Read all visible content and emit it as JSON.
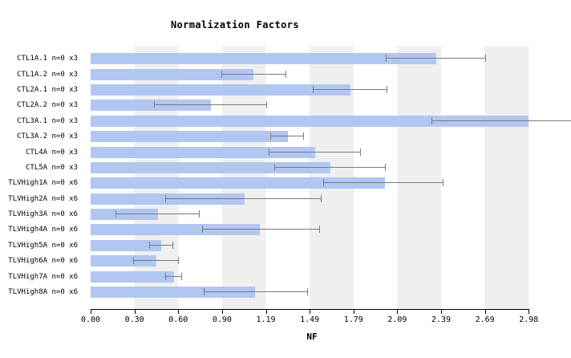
{
  "title": "Normalization Factors",
  "xlabel": "NF",
  "chart_data": {
    "type": "bar",
    "orientation": "horizontal",
    "title": "Normalization Factors",
    "xlabel": "NF",
    "ylabel": "",
    "xlim": [
      0,
      2.98
    ],
    "grid": "alternating-vertical-stripes",
    "categories": [
      "CTL1A.1 n=0 x3",
      "CTL1A.2 n=0 x3",
      "CTL2A.1 n=0 x3",
      "CTL2A.2 n=0 x3",
      "CTL3A.1 n=0 x3",
      "CTL3A.2 n=0 x3",
      "CTL4A n=0 x3",
      "CTL5A n=0 x3",
      "TLVHigh1A n=0 x6",
      "TLVHigh2A n=0 x6",
      "TLVHigh3A n=0 x6",
      "TLVHigh4A n=0 x6",
      "TLVHigh5A n=0 x6",
      "TLVHigh6A n=0 x6",
      "TLVHigh7A n=0 x6",
      "TLVHigh8A n=0 x6"
    ],
    "values": [
      2.35,
      1.11,
      1.77,
      0.82,
      2.98,
      1.34,
      1.53,
      1.63,
      2.0,
      1.05,
      0.46,
      1.15,
      0.48,
      0.45,
      0.57,
      1.12
    ],
    "error_low": [
      2.01,
      0.89,
      1.51,
      0.43,
      2.32,
      1.22,
      1.21,
      1.25,
      1.58,
      0.51,
      0.17,
      0.76,
      0.4,
      0.29,
      0.51,
      0.77
    ],
    "error_high": [
      2.69,
      1.33,
      2.02,
      1.2,
      3.27,
      1.45,
      1.84,
      2.01,
      2.4,
      1.57,
      0.74,
      1.56,
      0.56,
      0.6,
      0.62,
      1.48
    ],
    "error_high_clipped": [
      false,
      false,
      false,
      false,
      true,
      false,
      false,
      false,
      false,
      false,
      false,
      false,
      false,
      false,
      false,
      false
    ],
    "xtick_labels": [
      "0.00",
      "0.30",
      "0.60",
      "0.90",
      "1.19",
      "1.49",
      "1.79",
      "2.09",
      "2.39",
      "2.69",
      "2.98"
    ],
    "xtick_values": [
      0,
      0.298,
      0.596,
      0.894,
      1.192,
      1.49,
      1.788,
      2.086,
      2.384,
      2.682,
      2.98
    ],
    "legend": null,
    "bar_color": "#b1c7f2",
    "error_color": "#7a7a7a",
    "stripe_color": "#efefef",
    "axis_color": "#000000"
  }
}
